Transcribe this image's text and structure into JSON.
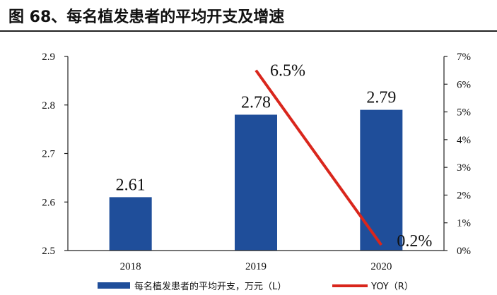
{
  "chart_data": {
    "type": "bar",
    "title": "图 68、每名植发患者的平均开支及增速",
    "categories": [
      "2018",
      "2019",
      "2020"
    ],
    "series": [
      {
        "name": "每名植发患者的平均开支，万元（L）",
        "type": "bar",
        "axis": "left",
        "values": [
          2.61,
          2.78,
          2.79
        ],
        "labels": [
          "2.61",
          "2.78",
          "2.79"
        ],
        "color": "#1f4e9a"
      },
      {
        "name": "YOY（R）",
        "type": "line",
        "axis": "right",
        "values": [
          null,
          6.5,
          0.2
        ],
        "labels": [
          "",
          "6.5%",
          "0.2%"
        ],
        "color": "#d9261c"
      }
    ],
    "y_left": {
      "range": [
        2.5,
        2.9
      ],
      "ticks": [
        "2.5",
        "2.6",
        "2.7",
        "2.8",
        "2.9"
      ]
    },
    "y_right": {
      "range": [
        0,
        7
      ],
      "ticks": [
        "0%",
        "1%",
        "2%",
        "3%",
        "4%",
        "5%",
        "6%",
        "7%"
      ]
    },
    "grid": false,
    "legend_position": "bottom"
  }
}
